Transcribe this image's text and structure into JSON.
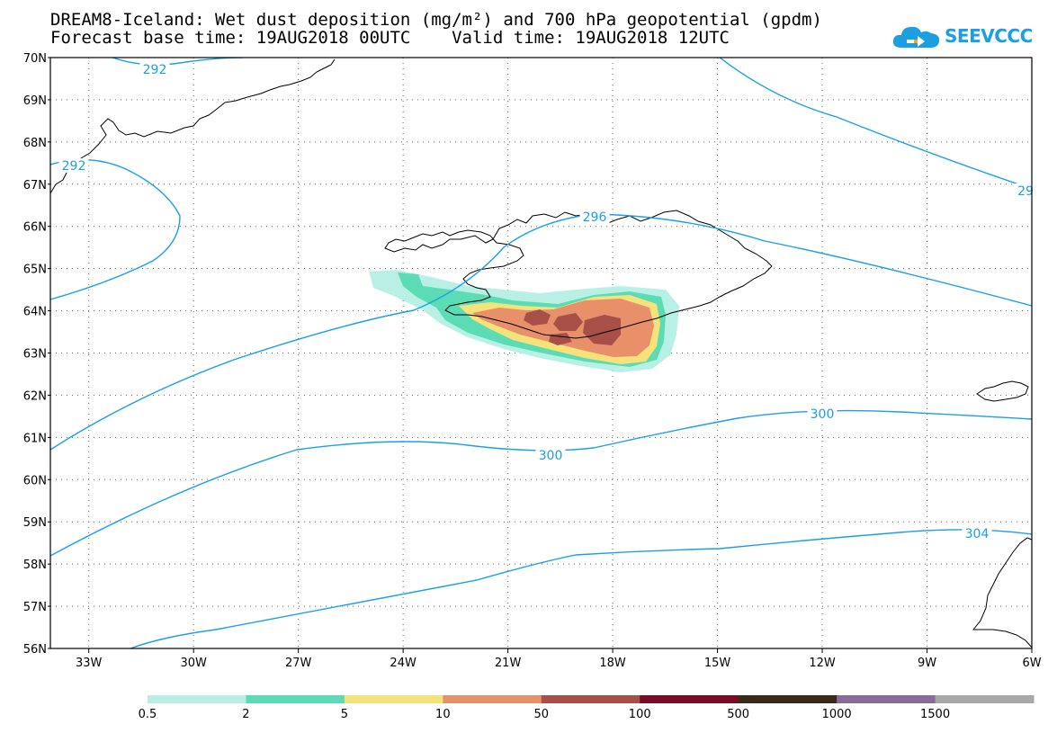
{
  "header": {
    "title_line1": "DREAM8-Iceland: Wet dust deposition (mg/m²) and 700 hPa geopotential (gpdm)",
    "title_line2": "Forecast base time: 19AUG2018 00UTC    Valid time: 19AUG2018 12UTC"
  },
  "logo": {
    "text": "SEEVCCC",
    "color": "#1aa0e0",
    "icon": "cloud-arrow-icon"
  },
  "map": {
    "lat_labels": [
      "70N",
      "69N",
      "68N",
      "67N",
      "66N",
      "65N",
      "64N",
      "63N",
      "62N",
      "61N",
      "60N",
      "59N",
      "58N",
      "57N",
      "56N"
    ],
    "lon_labels": [
      "33W",
      "30W",
      "27W",
      "24W",
      "21W",
      "18W",
      "15W",
      "12W",
      "9W",
      "6W"
    ],
    "lat_range": [
      56,
      70
    ],
    "lon_range": [
      -34.1,
      -6
    ],
    "grid": "dotted",
    "contour_color": "#1a9fe8",
    "contour_labels": [
      "292",
      "292",
      "296",
      "29",
      "300",
      "300",
      "304"
    ]
  },
  "colorbar": {
    "labels": [
      "0.5",
      "2",
      "5",
      "10",
      "50",
      "100",
      "500",
      "1000",
      "1500"
    ],
    "colors": [
      "#b9f0e6",
      "#5bdcb4",
      "#f5e27a",
      "#e8906a",
      "#a84f48",
      "#7a0c26",
      "#3a2a1a",
      "#8a6a9a",
      "#a8a8a8"
    ]
  }
}
